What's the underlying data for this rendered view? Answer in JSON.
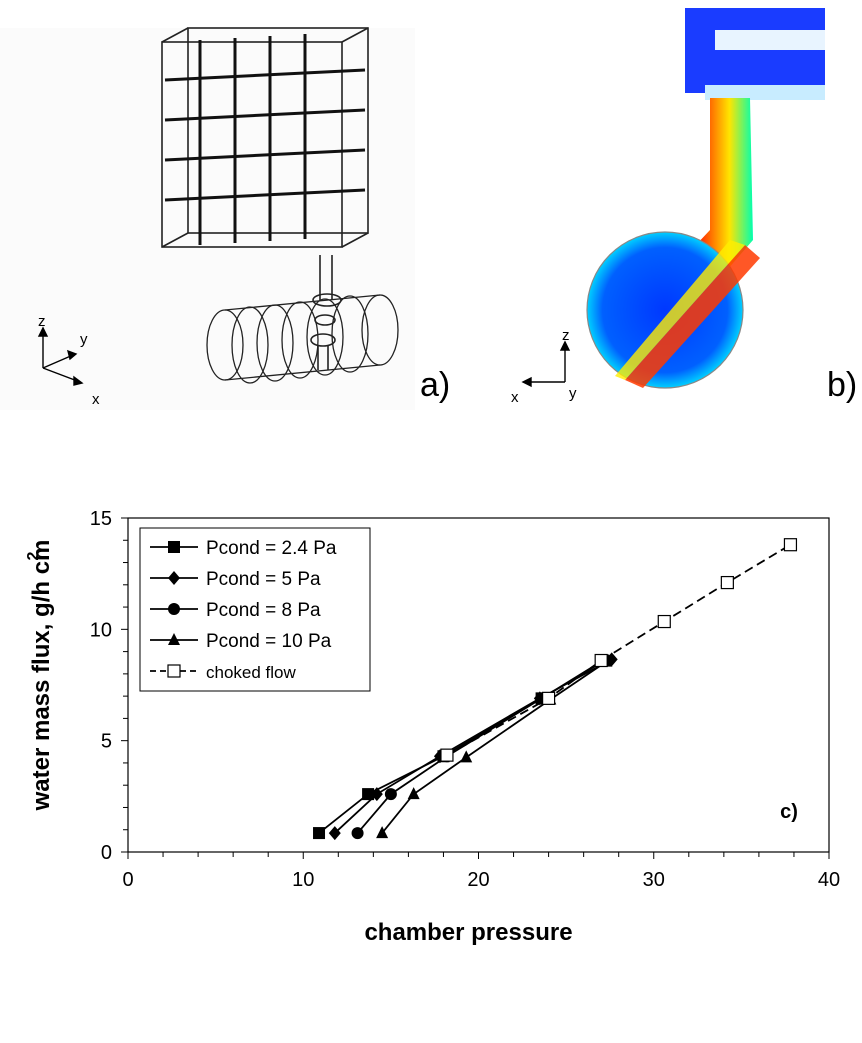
{
  "panels": {
    "a": {
      "label": "a)",
      "axes": {
        "z": "z",
        "y": "y",
        "x": "x"
      }
    },
    "b": {
      "label": "b)",
      "axes": {
        "z": "z",
        "x": "x",
        "y": "y"
      }
    }
  },
  "chart_data": {
    "type": "line",
    "panel_label": "c)",
    "xlabel": "chamber pressure",
    "ylabel": "water mass flux, g/h cm",
    "ylabel_superscript": "2",
    "xlim": [
      0,
      40
    ],
    "ylim": [
      0,
      15
    ],
    "xticks": [
      0,
      10,
      20,
      30,
      40
    ],
    "yticks": [
      0,
      5,
      10,
      15
    ],
    "grid": false,
    "legend_position": "top-left",
    "series": [
      {
        "name": "Pcond =  2.4 Pa",
        "marker": "square-filled",
        "line": "solid",
        "x": [
          10.9,
          13.7,
          18.0,
          23.6,
          27.1
        ],
        "y": [
          0.85,
          2.6,
          4.3,
          6.9,
          8.6
        ]
      },
      {
        "name": "Pcond =   5 Pa",
        "marker": "diamond-filled",
        "line": "solid",
        "x": [
          11.8,
          14.2,
          17.8,
          23.5,
          27.6
        ],
        "y": [
          0.85,
          2.6,
          4.3,
          6.9,
          8.65
        ]
      },
      {
        "name": "Pcond =   8 Pa",
        "marker": "circle-filled",
        "line": "solid",
        "x": [
          13.1,
          15.0,
          18.2,
          23.6,
          27.2
        ],
        "y": [
          0.85,
          2.6,
          4.3,
          6.9,
          8.6
        ]
      },
      {
        "name": "Pcond = 10 Pa",
        "marker": "triangle-filled",
        "line": "solid",
        "x": [
          14.5,
          16.3,
          19.3,
          24.1,
          27.3
        ],
        "y": [
          0.85,
          2.6,
          4.25,
          6.85,
          8.55
        ]
      },
      {
        "name": "choked flow",
        "marker": "square-open",
        "line": "dashed",
        "x": [
          18.2,
          24.0,
          27.0,
          30.6,
          34.2,
          37.8
        ],
        "y": [
          4.35,
          6.9,
          8.6,
          10.35,
          12.1,
          13.8
        ]
      }
    ]
  }
}
